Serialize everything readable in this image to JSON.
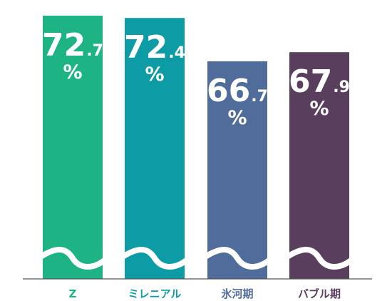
{
  "chart_data": {
    "type": "bar",
    "categories": [
      "Z",
      "ミレニアル",
      "氷河期",
      "バブル期"
    ],
    "values": [
      72.7,
      72.4,
      66.7,
      67.9
    ],
    "value_labels": [
      {
        "int": "72",
        "dec": ".7",
        "unit": "%"
      },
      {
        "int": "72",
        "dec": ".4",
        "unit": "%"
      },
      {
        "int": "66",
        "dec": ".7",
        "unit": "%"
      },
      {
        "int": "67",
        "dec": ".9",
        "unit": "%"
      }
    ],
    "colors": [
      "#1db384",
      "#0d9ca6",
      "#4f6c9b",
      "#5a3e5d"
    ],
    "axis_break": true,
    "grid": false,
    "legend": "none",
    "title": "",
    "xlabel": "",
    "ylabel": ""
  }
}
